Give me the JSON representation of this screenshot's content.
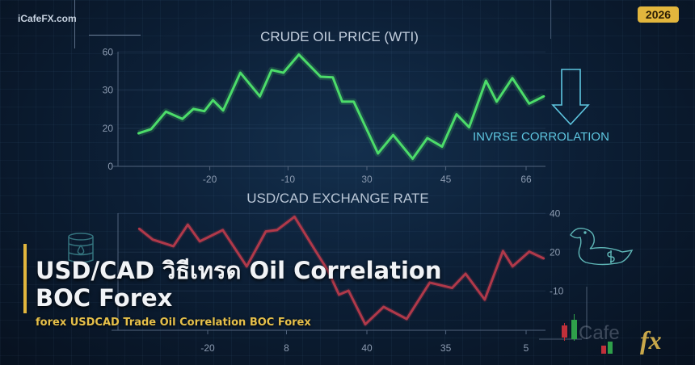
{
  "brand": "iCafeFX.com",
  "year_badge": "2026",
  "headline": {
    "line1": "USD/CAD วิธีเทรด Oil Correlation",
    "line2": "BOC Forex"
  },
  "subtitle": "forex USDCAD Trade Oil Correlation BOC Forex",
  "annotation": "INVRSE CORROLATION",
  "logo_text": "CafeFX",
  "colors": {
    "oil_line": "#4cdc6a",
    "usdcad_line": "#b0394a",
    "accent_gold": "#e2b63d",
    "annotation": "#5ec6e0"
  },
  "icons": [
    "oil-barrel-icon",
    "down-arrow-icon",
    "loonie-duck-icon",
    "candlestick-icon"
  ],
  "chart_data": [
    {
      "type": "line",
      "title": "CRUDE OIL PRICE (WTI)",
      "yticks": [
        0,
        20,
        30,
        60
      ],
      "xticks": [
        -20,
        -10,
        30,
        45,
        66
      ],
      "grid": true,
      "series": [
        {
          "x": [
            -29.1,
            -27.5,
            -25.6,
            -23.5,
            -22.1,
            -20.7,
            -19.6,
            -18.3,
            -16.1,
            -13.6,
            -12.1,
            -10.6,
            -4.5,
            6.5,
            12.7,
            17.5,
            23.3,
            32.1,
            35.0,
            38.7,
            41.5,
            44.3,
            47.8,
            51.1,
            55.5,
            58.3,
            62.4,
            66.8,
            70.6
          ],
          "y": [
            17.4,
            19.6,
            24.4,
            22.5,
            25.1,
            24.5,
            27.4,
            24.7,
            43.7,
            28.4,
            45.8,
            43.7,
            57.9,
            40.6,
            40.1,
            27.0,
            27.0,
            6.8,
            16.5,
            4.0,
            14.9,
            10.4,
            23.7,
            20.3,
            37.4,
            27.0,
            39.5,
            26.5,
            28.4
          ]
        }
      ]
    },
    {
      "type": "line",
      "title": "USD/CAD EXCHANGE RATE",
      "yticks": [
        40,
        20,
        -10
      ],
      "xticks": [
        "-20",
        "8",
        "40",
        "35",
        "5"
      ],
      "grid": true,
      "series": [
        {
          "x_tick_position": [
            -0.86,
            -0.69,
            -0.43,
            -0.25,
            -0.1,
            0.19,
            0.49,
            0.73,
            0.87,
            1.09,
            1.36,
            1.51,
            1.65,
            1.77,
            1.98,
            2.21,
            2.5,
            2.79,
            3.07,
            3.24,
            3.48,
            3.71,
            3.83,
            4.04,
            4.22
          ],
          "y": [
            32.1,
            26.5,
            23.1,
            34.2,
            25.6,
            31.4,
            9.0,
            30.7,
            31.4,
            38.3,
            20.3,
            5.8,
            -12.9,
            -9.8,
            -35.8,
            -22.3,
            -31.7,
            -3.5,
            -7.7,
            3.3,
            -16.7,
            20.6,
            9.0,
            20.3,
            15.2
          ]
        }
      ]
    }
  ]
}
